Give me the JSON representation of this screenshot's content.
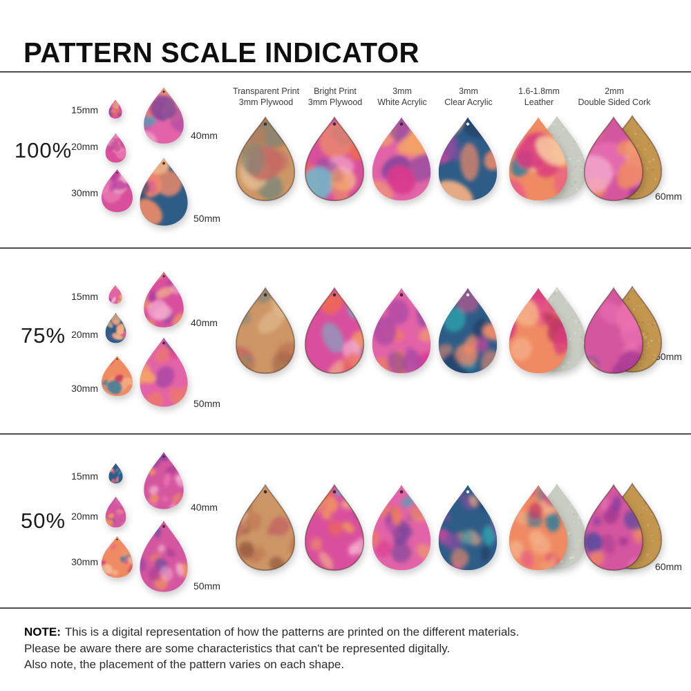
{
  "title": "PATTERN SCALE INDICATOR",
  "columns": [
    {
      "line1": "Transparent Print",
      "line2": "3mm Plywood"
    },
    {
      "line1": "Bright Print",
      "line2": "3mm Plywood"
    },
    {
      "line1": "3mm",
      "line2": "White Acrylic"
    },
    {
      "line1": "3mm",
      "line2": "Clear Acrylic"
    },
    {
      "line1": "1.6-1.8mm",
      "line2": "Leather"
    },
    {
      "line1": "2mm",
      "line2": "Double Sided Cork"
    }
  ],
  "rows": [
    {
      "scale": "100%",
      "sizes": {
        "s15": "15mm",
        "s20": "20mm",
        "s30": "30mm",
        "s40": "40mm",
        "s50": "50mm",
        "s60": "60mm"
      }
    },
    {
      "scale": "75%",
      "sizes": {
        "s15": "15mm",
        "s20": "20mm",
        "s30": "30mm",
        "s40": "40mm",
        "s50": "50mm",
        "s60": "60mm"
      }
    },
    {
      "scale": "50%",
      "sizes": {
        "s15": "15mm",
        "s20": "20mm",
        "s30": "30mm",
        "s40": "40mm",
        "s50": "50mm",
        "s60": "60mm"
      }
    }
  ],
  "note": {
    "label": "NOTE:",
    "line1": "This is a digital representation of how the patterns are printed on the different materials.",
    "line2": "Please be aware there are some characteristics that can't be represented digitally.",
    "line3": "Also note, the placement of the pattern varies on each shape."
  },
  "colors": {
    "divider": "#4d4d4d",
    "text_dark": "#0f0f0f",
    "text_gray": "#3c3c3c",
    "palettes": {
      "transparent_plywood": [
        "#cd9666",
        "#b87f53",
        "#7d8878",
        "#daa97b",
        "#c17a55",
        "#9c6143",
        "#e2bb8e",
        "#c46a63"
      ],
      "bright_plywood": [
        "#d94f9d",
        "#b03aa0",
        "#f29a5e",
        "#ef6a52",
        "#74b4c8",
        "#f6bd88",
        "#8e4e9e",
        "#f3a9cd"
      ],
      "white_acrylic": [
        "#e263a7",
        "#48a4b6",
        "#f4a168",
        "#b04aa5",
        "#7e449a",
        "#ef7d5e",
        "#f7c2da",
        "#d93a8c"
      ],
      "clear_acrylic": [
        "#2d5c87",
        "#2e9aa8",
        "#f5b183",
        "#c8459e",
        "#7a4f9e",
        "#ef8a6a",
        "#1f4068",
        "#e25a92"
      ],
      "leather": [
        "#ef8a63",
        "#e8558b",
        "#f4ad85",
        "#d93a7e",
        "#c23a64",
        "#f7c9a0",
        "#3f7e98",
        "#f09a74"
      ],
      "cork": [
        "#d4569f",
        "#a93a92",
        "#f0925e",
        "#ef8a63",
        "#8e3f9e",
        "#f3aed0",
        "#5a4a9e",
        "#e86fb0"
      ],
      "pink_marble": [
        "#d8509c",
        "#b83a9b",
        "#ef85b8",
        "#c04a90",
        "#e8a0c8",
        "#a23a7e",
        "#f2b8d8"
      ],
      "leather_back": [
        "#c9ccc3",
        "#dadcd4",
        "#b8bcb2",
        "#e4e6df"
      ],
      "cork_back": [
        "#c2964f",
        "#d8b275",
        "#a87f42",
        "#e0c28a"
      ]
    }
  }
}
